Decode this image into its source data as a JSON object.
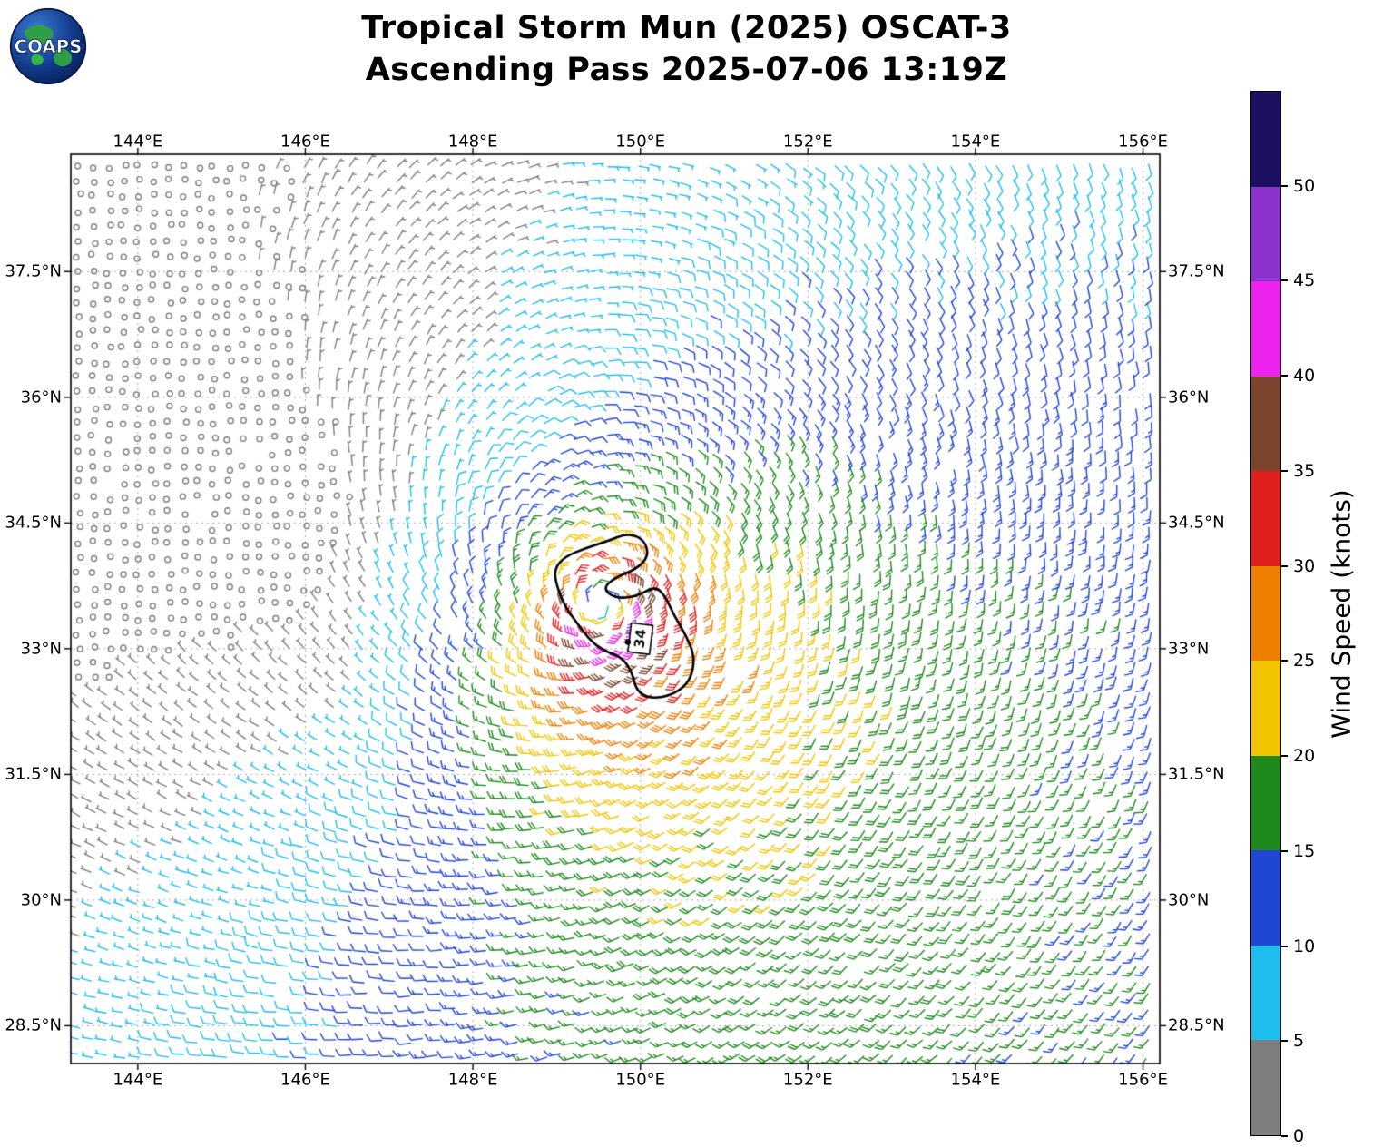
{
  "header": {
    "logo_text": "COAPS",
    "title_line1": "Tropical Storm Mun (2025) OSCAT-3",
    "title_line2": "Ascending Pass 2025-07-06 13:19Z"
  },
  "chart_data": {
    "type": "scatter",
    "subtype": "wind-barb-map",
    "title": "Tropical Storm Mun (2025) OSCAT-3",
    "subtitle": "Ascending Pass 2025-07-06 13:19Z",
    "grid": true,
    "lon_range": [
      143.2,
      156.2
    ],
    "lat_range": [
      28.05,
      38.9
    ],
    "lon_ticks": [
      {
        "value": 144,
        "label": "144°E"
      },
      {
        "value": 146,
        "label": "146°E"
      },
      {
        "value": 148,
        "label": "148°E"
      },
      {
        "value": 150,
        "label": "150°E"
      },
      {
        "value": 152,
        "label": "152°E"
      },
      {
        "value": 154,
        "label": "154°E"
      },
      {
        "value": 156,
        "label": "156°E"
      }
    ],
    "lat_ticks": [
      {
        "value": 28.5,
        "label": "28.5°N"
      },
      {
        "value": 30,
        "label": "30°N"
      },
      {
        "value": 31.5,
        "label": "31.5°N"
      },
      {
        "value": 33,
        "label": "33°N"
      },
      {
        "value": 34.5,
        "label": "34.5°N"
      },
      {
        "value": 36,
        "label": "36°N"
      },
      {
        "value": 37.5,
        "label": "37.5°N"
      }
    ],
    "colorbar": {
      "title": "Wind Speed (knots)",
      "units": "knots",
      "tick_values": [
        0,
        5,
        10,
        15,
        20,
        25,
        30,
        35,
        40,
        45,
        50
      ],
      "range_kt": [
        0,
        55
      ],
      "colors": [
        "#7f7f7f",
        "#1fbdee",
        "#2046d4",
        "#1e8a1e",
        "#f2c500",
        "#ee8000",
        "#e01f1f",
        "#7a452c",
        "#ee22ee",
        "#8c32cc",
        "#1e1060"
      ]
    },
    "wind_field": {
      "description": "Cyclonic (counterclockwise) scatterometer wind field around Tropical Storm Mun; calm/gray winds northwest of center, strongest 40-50 kt winds in a tight ring near the center, broad 15-25 kt flow east and south.",
      "center_lon": 149.55,
      "center_lat": 33.5,
      "vmax_kt": 42,
      "rmax_deg": 0.45,
      "decay_exp": 0.5,
      "bg_u_kt": 5,
      "bg_v_kt": 3,
      "inflow_rad": 0.25,
      "calm_azimuth_deg": 170,
      "calm_sigma_deg": 50,
      "calm_amp_per_deg_radius": 0.25,
      "calm_amp_max": 0.85,
      "grid_spacing_deg": 0.18
    },
    "contour": {
      "level_kt": 34,
      "label": "34",
      "label_pos": [
        150.0,
        33.12
      ],
      "polygon": [
        [
          149.0,
          33.75
        ],
        [
          148.97,
          33.95
        ],
        [
          149.1,
          34.1
        ],
        [
          149.35,
          34.2
        ],
        [
          149.6,
          34.28
        ],
        [
          149.85,
          34.38
        ],
        [
          150.05,
          34.3
        ],
        [
          150.1,
          34.1
        ],
        [
          149.95,
          33.95
        ],
        [
          149.7,
          33.85
        ],
        [
          149.55,
          33.72
        ],
        [
          149.7,
          33.6
        ],
        [
          149.95,
          33.62
        ],
        [
          150.18,
          33.75
        ],
        [
          150.3,
          33.62
        ],
        [
          150.4,
          33.4
        ],
        [
          150.55,
          33.15
        ],
        [
          150.65,
          32.9
        ],
        [
          150.6,
          32.62
        ],
        [
          150.4,
          32.45
        ],
        [
          150.12,
          32.4
        ],
        [
          149.95,
          32.5
        ],
        [
          149.9,
          32.72
        ],
        [
          149.78,
          32.9
        ],
        [
          149.55,
          32.98
        ],
        [
          149.38,
          33.12
        ],
        [
          149.25,
          33.3
        ],
        [
          149.1,
          33.5
        ]
      ]
    },
    "center_marker": [
      149.85,
      33.08
    ]
  }
}
